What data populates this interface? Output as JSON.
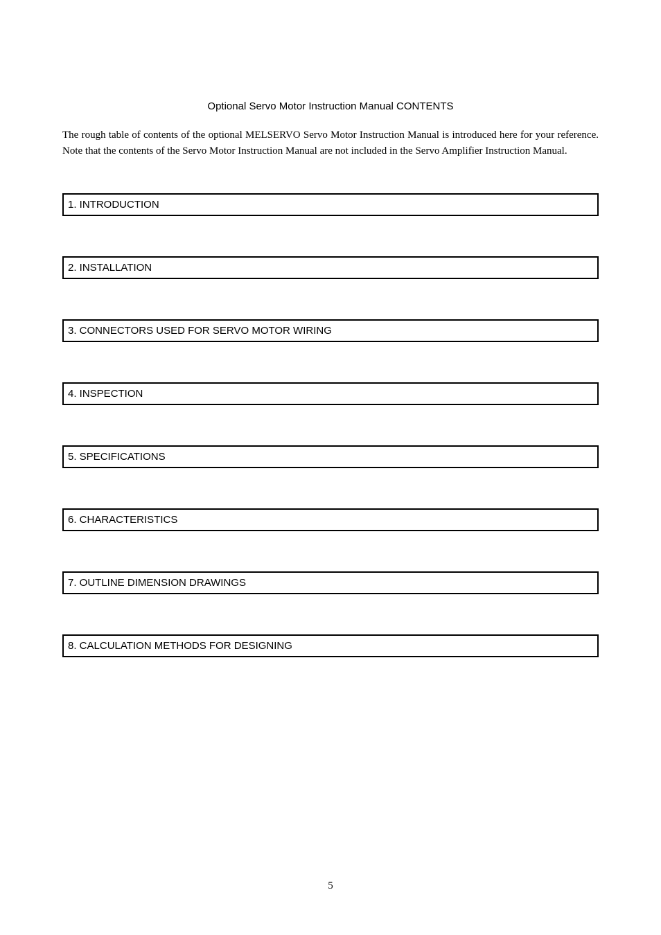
{
  "title": "Optional Servo Motor Instruction Manual CONTENTS",
  "intro": "The rough table of contents of the optional MELSERVO Servo Motor Instruction Manual is introduced here for your reference. Note that the contents of the Servo Motor Instruction Manual are not included in the Servo Amplifier Instruction Manual.",
  "sections": [
    "1. INTRODUCTION",
    "2. INSTALLATION",
    "3. CONNECTORS USED FOR SERVO MOTOR WIRING",
    "4. INSPECTION",
    "5. SPECIFICATIONS",
    "6. CHARACTERISTICS",
    "7. OUTLINE DIMENSION DRAWINGS",
    "8. CALCULATION METHODS FOR DESIGNING"
  ],
  "page_number": "5",
  "styles": {
    "page_bg": "#ffffff",
    "text_color": "#000000",
    "border_color": "#000000",
    "title_fontsize": 15,
    "intro_fontsize": 15,
    "section_fontsize": 15,
    "section_border_width": 2,
    "section_spacing": 58
  }
}
